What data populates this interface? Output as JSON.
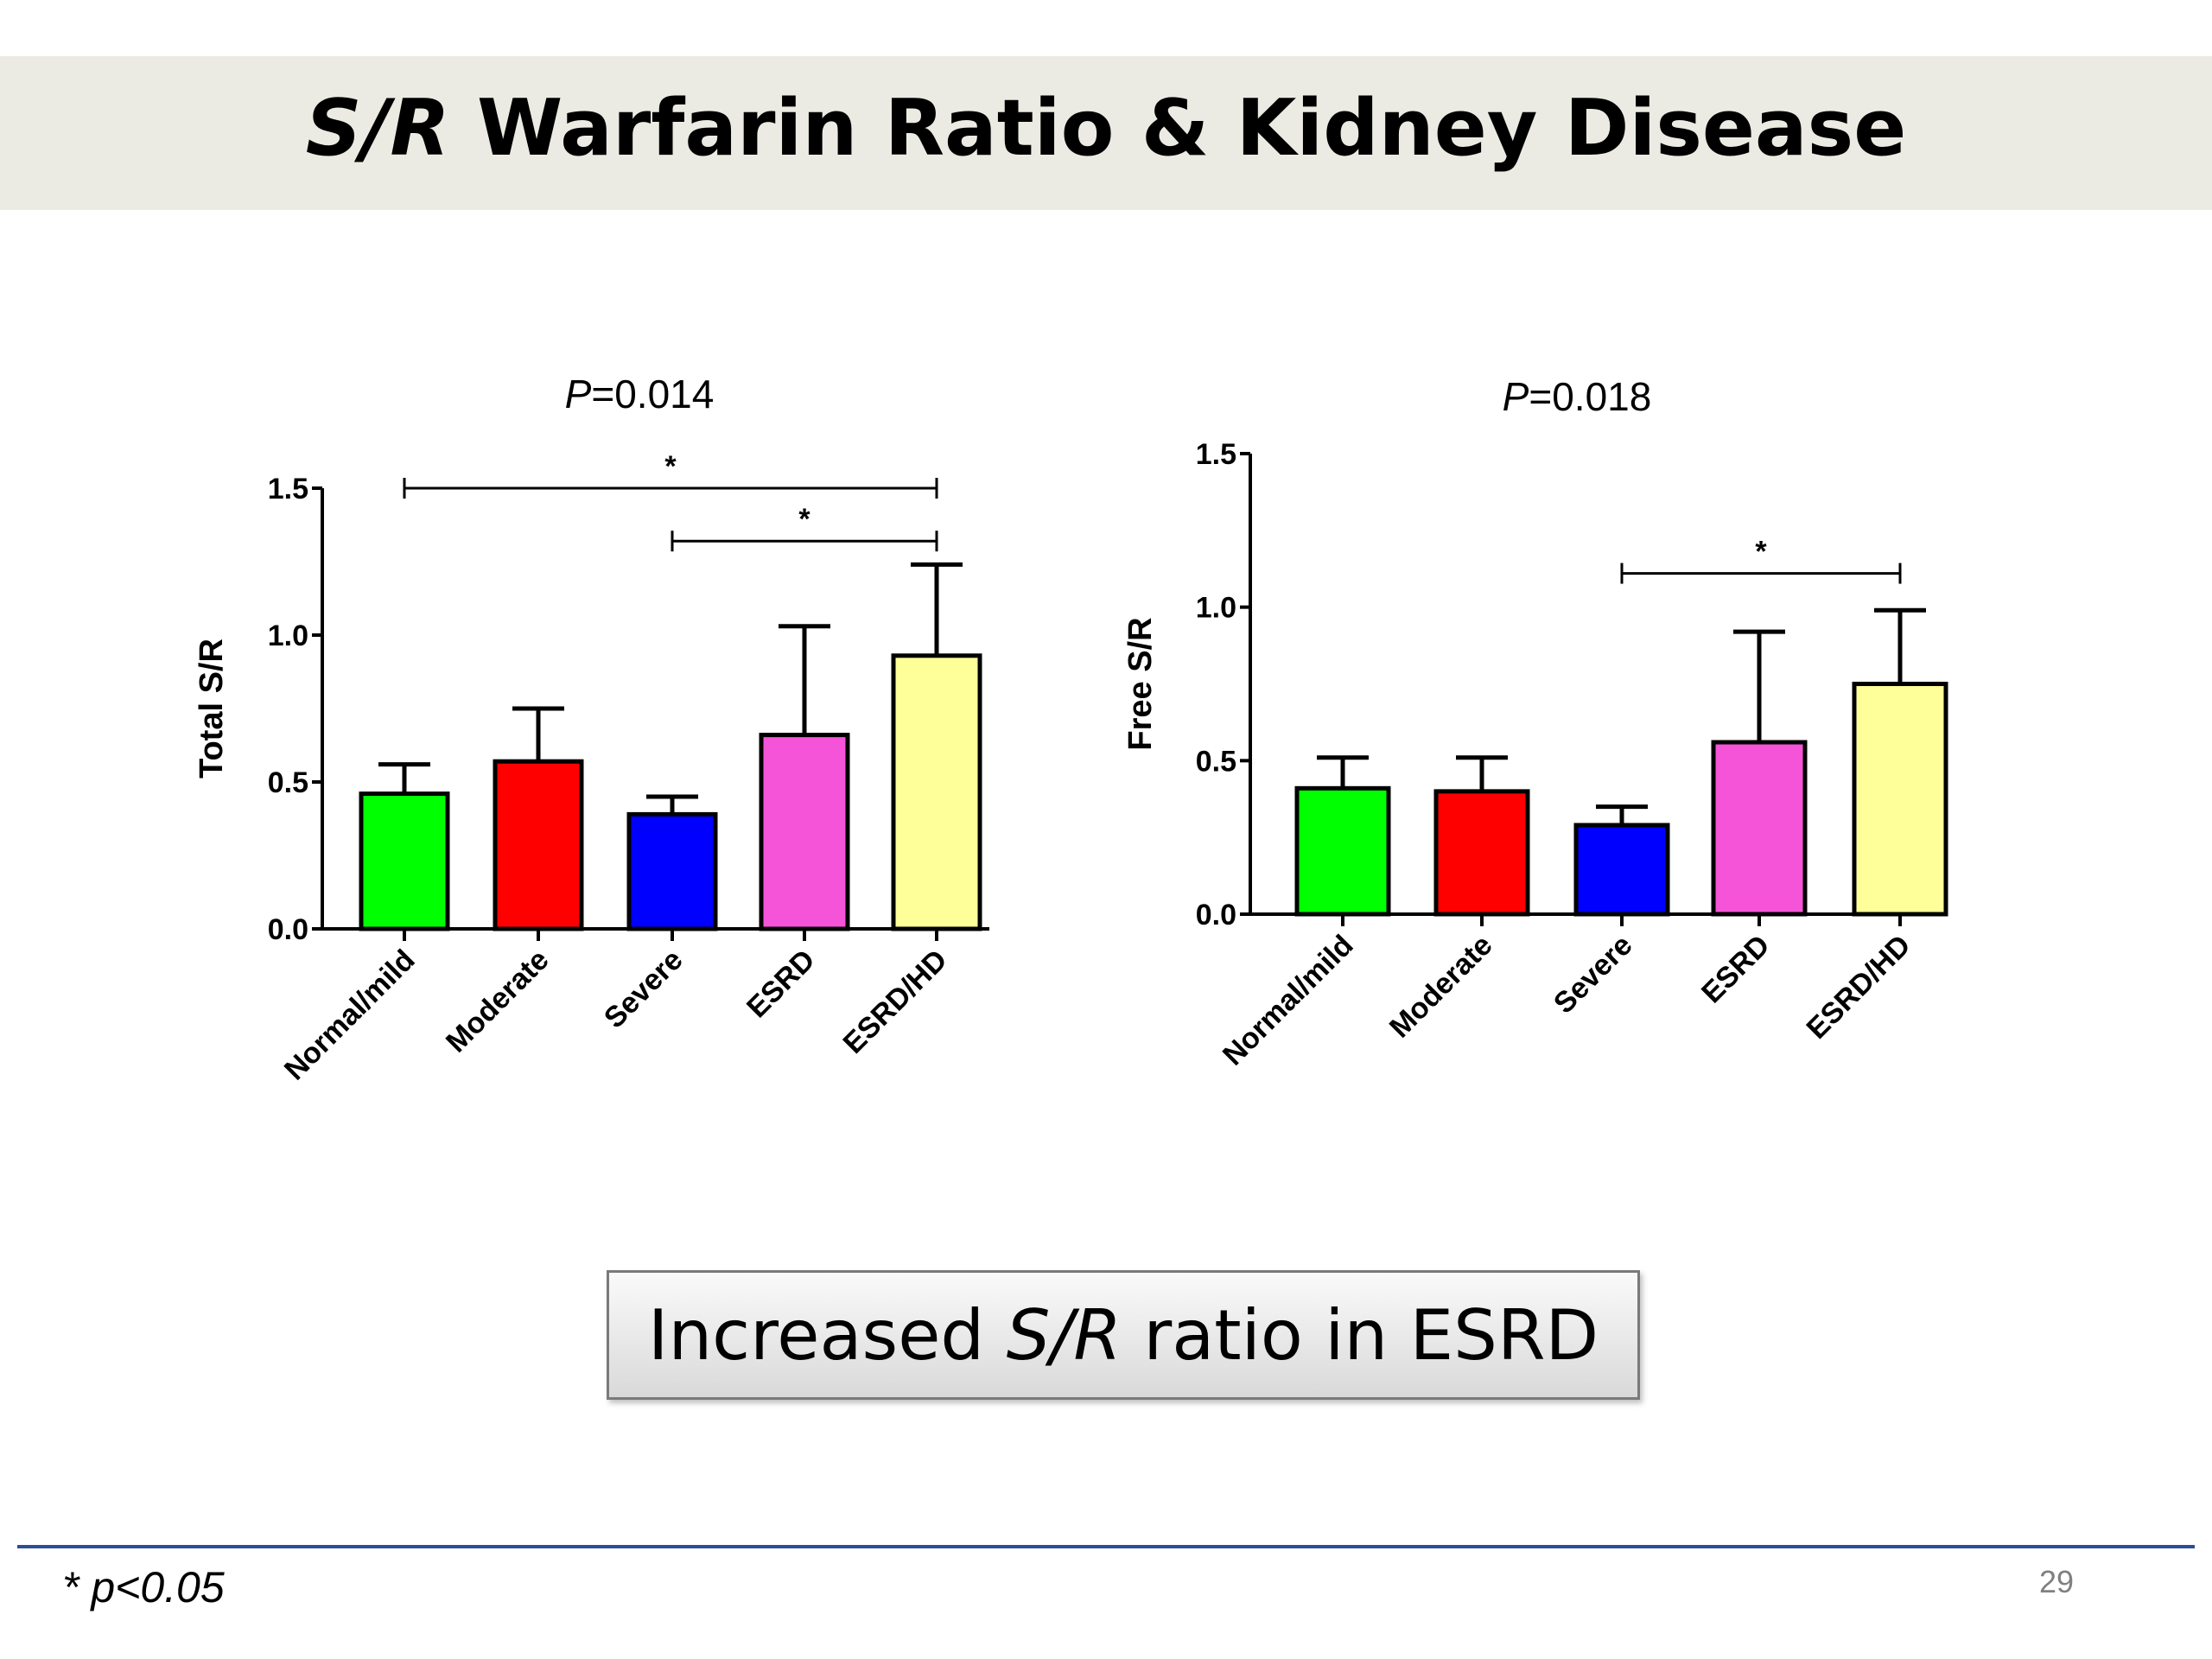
{
  "slide": {
    "title_italic": "S/R",
    "title_rest": " Warfarin Ratio & Kidney Disease",
    "callout_pre": "Increased ",
    "callout_italic": "S/R",
    "callout_post": " ratio in ESRD",
    "footnote": "* p<0.05",
    "page_number": "29"
  },
  "chart_data": [
    {
      "type": "bar",
      "title_italic": "P",
      "title_rest": "=0.014",
      "ylabel": "Total S/R",
      "xlabel": "",
      "categories": [
        "Normal/mild",
        "Moderate",
        "Severe",
        "ESRD",
        "ESRD/HD"
      ],
      "values": [
        0.46,
        0.57,
        0.39,
        0.66,
        0.93
      ],
      "error_upper": [
        0.56,
        0.75,
        0.45,
        1.03,
        1.24
      ],
      "colors": [
        "#00ff00",
        "#ff0000",
        "#0000ff",
        "#f654d8",
        "#ffff99"
      ],
      "ylim": [
        0,
        1.5
      ],
      "yticks": [
        "0.0",
        "0.5",
        "1.0",
        "1.5"
      ],
      "significance": [
        {
          "from": 0,
          "to": 4,
          "label": "*",
          "y": 1.5
        },
        {
          "from": 2,
          "to": 4,
          "label": "*",
          "y": 1.32
        }
      ]
    },
    {
      "type": "bar",
      "title_italic": "P",
      "title_rest": "=0.018",
      "ylabel": "Free S/R",
      "xlabel": "",
      "categories": [
        "Normal/mild",
        "Moderate",
        "Severe",
        "ESRD",
        "ESRD/HD"
      ],
      "values": [
        0.41,
        0.4,
        0.29,
        0.56,
        0.75
      ],
      "error_upper": [
        0.51,
        0.51,
        0.35,
        0.92,
        0.99
      ],
      "colors": [
        "#00ff00",
        "#ff0000",
        "#0000ff",
        "#f654d8",
        "#ffff99"
      ],
      "ylim": [
        0,
        1.5
      ],
      "yticks": [
        "0.0",
        "0.5",
        "1.0",
        "1.5"
      ],
      "significance": [
        {
          "from": 2,
          "to": 4,
          "label": "*",
          "y": 1.11
        }
      ]
    }
  ]
}
